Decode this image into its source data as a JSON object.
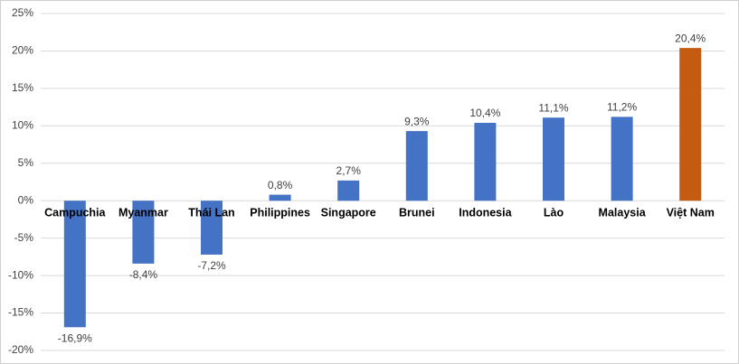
{
  "chart_data": {
    "type": "bar",
    "categories": [
      "Campuchia",
      "Myanmar",
      "Thái Lan",
      "Philippines",
      "Singapore",
      "Brunei",
      "Indonesia",
      "Lào",
      "Malaysia",
      "Việt Nam"
    ],
    "values": [
      -16.9,
      -8.4,
      -7.2,
      0.8,
      2.7,
      9.3,
      10.4,
      11.1,
      11.2,
      20.4
    ],
    "value_labels": [
      "-16,9%",
      "-8,4%",
      "-7,2%",
      "0,8%",
      "2,7%",
      "9,3%",
      "10,4%",
      "11,1%",
      "11,2%",
      "20,4%"
    ],
    "colors": [
      "#4472c4",
      "#4472c4",
      "#4472c4",
      "#4472c4",
      "#4472c4",
      "#4472c4",
      "#4472c4",
      "#4472c4",
      "#4472c4",
      "#c55a11"
    ],
    "ylim": [
      -20,
      25
    ],
    "yticks": [
      {
        "value": -20,
        "label": "-20%"
      },
      {
        "value": -15,
        "label": "-15%"
      },
      {
        "value": -10,
        "label": "-10%"
      },
      {
        "value": -5,
        "label": "-5%"
      },
      {
        "value": 0,
        "label": "0%"
      },
      {
        "value": 5,
        "label": "5%"
      },
      {
        "value": 10,
        "label": "10%"
      },
      {
        "value": 15,
        "label": "15%"
      },
      {
        "value": 20,
        "label": "20%"
      },
      {
        "value": 25,
        "label": "25%"
      }
    ],
    "grid": true
  }
}
